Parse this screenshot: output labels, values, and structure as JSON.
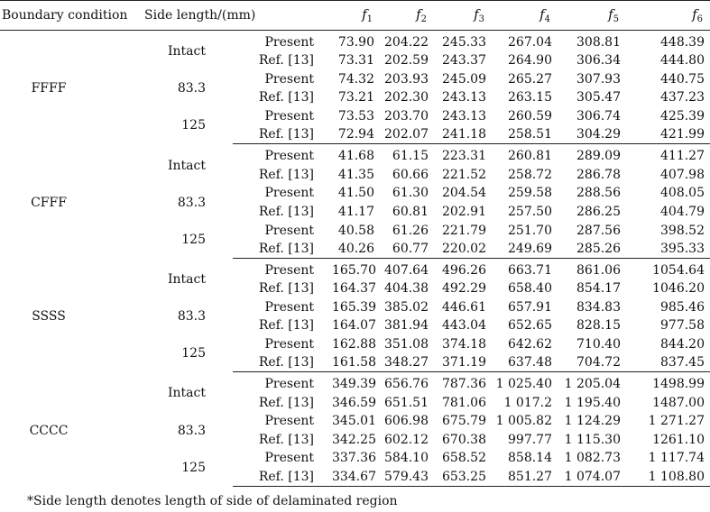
{
  "headers": {
    "boundary": "Boundary condition",
    "side": "Side length/(mm)",
    "source": "",
    "f": [
      "1",
      "2",
      "3",
      "4",
      "5",
      "6"
    ],
    "f_symbol": "f"
  },
  "groups": [
    {
      "name": "FFFF",
      "rows": [
        {
          "side": "Intact",
          "source": "Present",
          "v": [
            "73.90",
            "204.22",
            "245.33",
            "267.04",
            "308.81",
            "448.39"
          ]
        },
        {
          "side": "",
          "source": "Ref. [13]",
          "v": [
            "73.31",
            "202.59",
            "243.37",
            "264.90",
            "306.34",
            "444.80"
          ]
        },
        {
          "side": "83.3",
          "source": "Present",
          "v": [
            "74.32",
            "203.93",
            "245.09",
            "265.27",
            "307.93",
            "440.75"
          ]
        },
        {
          "side": "",
          "source": "Ref. [13]",
          "v": [
            "73.21",
            "202.30",
            "243.13",
            "263.15",
            "305.47",
            "437.23"
          ]
        },
        {
          "side": "125",
          "source": "Present",
          "v": [
            "73.53",
            "203.70",
            "243.13",
            "260.59",
            "306.74",
            "425.39"
          ]
        },
        {
          "side": "",
          "source": "Ref. [13]",
          "v": [
            "72.94",
            "202.07",
            "241.18",
            "258.51",
            "304.29",
            "421.99"
          ]
        }
      ]
    },
    {
      "name": "CFFF",
      "rows": [
        {
          "side": "Intact",
          "source": "Present",
          "v": [
            "41.68",
            "61.15",
            "223.31",
            "260.81",
            "289.09",
            "411.27"
          ]
        },
        {
          "side": "",
          "source": "Ref. [13]",
          "v": [
            "41.35",
            "60.66",
            "221.52",
            "258.72",
            "286.78",
            "407.98"
          ]
        },
        {
          "side": "83.3",
          "source": "Present",
          "v": [
            "41.50",
            "61.30",
            "204.54",
            "259.58",
            "288.56",
            "408.05"
          ]
        },
        {
          "side": "",
          "source": "Ref. [13]",
          "v": [
            "41.17",
            "60.81",
            "202.91",
            "257.50",
            "286.25",
            "404.79"
          ]
        },
        {
          "side": "125",
          "source": "Present",
          "v": [
            "40.58",
            "61.26",
            "221.79",
            "251.70",
            "287.56",
            "398.52"
          ]
        },
        {
          "side": "",
          "source": "Ref. [13]",
          "v": [
            "40.26",
            "60.77",
            "220.02",
            "249.69",
            "285.26",
            "395.33"
          ]
        }
      ]
    },
    {
      "name": "SSSS",
      "rows": [
        {
          "side": "Intact",
          "source": "Present",
          "v": [
            "165.70",
            "407.64",
            "496.26",
            "663.71",
            "861.06",
            "1054.64"
          ]
        },
        {
          "side": "",
          "source": "Ref. [13]",
          "v": [
            "164.37",
            "404.38",
            "492.29",
            "658.40",
            "854.17",
            "1046.20"
          ]
        },
        {
          "side": "83.3",
          "source": "Present",
          "v": [
            "165.39",
            "385.02",
            "446.61",
            "657.91",
            "834.83",
            "985.46"
          ]
        },
        {
          "side": "",
          "source": "Ref. [13]",
          "v": [
            "164.07",
            "381.94",
            "443.04",
            "652.65",
            "828.15",
            "977.58"
          ]
        },
        {
          "side": "125",
          "source": "Present",
          "v": [
            "162.88",
            "351.08",
            "374.18",
            "642.62",
            "710.40",
            "844.20"
          ]
        },
        {
          "side": "",
          "source": "Ref. [13]",
          "v": [
            "161.58",
            "348.27",
            "371.19",
            "637.48",
            "704.72",
            "837.45"
          ]
        }
      ]
    },
    {
      "name": "CCCC",
      "rows": [
        {
          "side": "Intact",
          "source": "Present",
          "v": [
            "349.39",
            "656.76",
            "787.36",
            "1 025.40",
            "1 205.04",
            "1498.99"
          ]
        },
        {
          "side": "",
          "source": "Ref. [13]",
          "v": [
            "346.59",
            "651.51",
            "781.06",
            "1 017.2",
            "1 195.40",
            "1487.00"
          ]
        },
        {
          "side": "83.3",
          "source": "Present",
          "v": [
            "345.01",
            "606.98",
            "675.79",
            "1 005.82",
            "1 124.29",
            "1 271.27"
          ]
        },
        {
          "side": "",
          "source": "Ref. [13]",
          "v": [
            "342.25",
            "602.12",
            "670.38",
            "997.77",
            "1 115.30",
            "1261.10"
          ]
        },
        {
          "side": "125",
          "source": "Present",
          "v": [
            "337.36",
            "584.10",
            "658.52",
            "858.14",
            "1 082.73",
            "1 117.74"
          ]
        },
        {
          "side": "",
          "source": "Ref. [13]",
          "v": [
            "334.67",
            "579.43",
            "653.25",
            "851.27",
            "1 074.07",
            "1 108.80"
          ]
        }
      ]
    }
  ],
  "footnote": "*Side length denotes length of side of delaminated region"
}
